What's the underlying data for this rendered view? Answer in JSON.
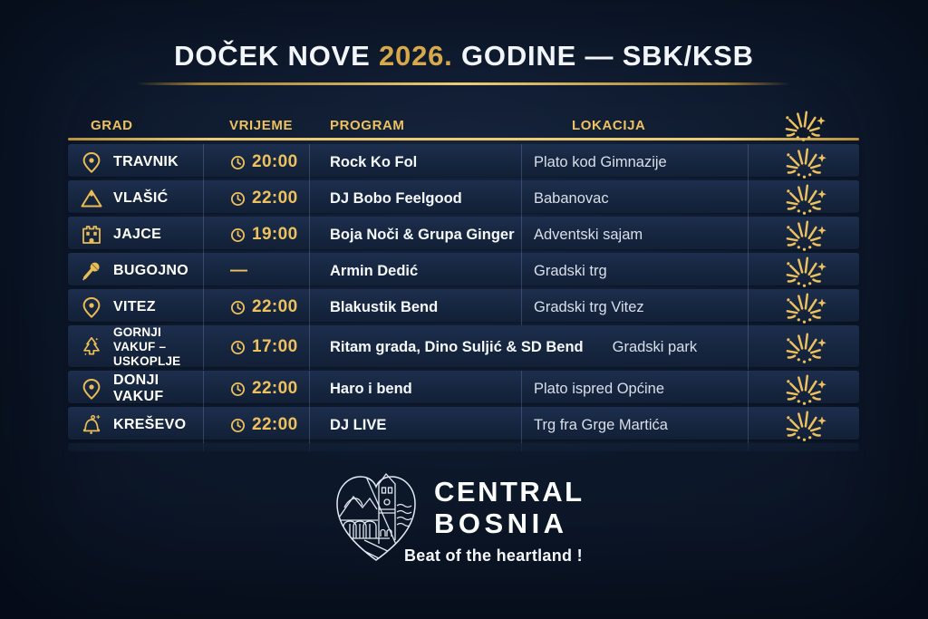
{
  "title": {
    "part1": "DOČEK NOVE ",
    "year": "2026.",
    "part2": " GODINE — SBK/KSB"
  },
  "table": {
    "headers": {
      "grad": "GRAD",
      "vrijeme": "VRIJEME",
      "program": "PROGRAM",
      "lokacija": "LOKACIJA"
    },
    "rows": [
      {
        "city": "TRAVNIK",
        "icon": "pin",
        "time": "20:00",
        "program": "Rock Ko Fol",
        "location": "Plato kod Gimnazije"
      },
      {
        "city": "VLAŠIĆ",
        "icon": "mountain",
        "time": "22:00",
        "program": "DJ Bobo Feelgood",
        "location": "Babanovac"
      },
      {
        "city": "JAJCE",
        "icon": "fortress",
        "time": "19:00",
        "program": "Boja Noči & Grupa Ginger",
        "location": "Adventski sajam"
      },
      {
        "city": "BUGOJNO",
        "icon": "microphone",
        "time": "—",
        "program": "Armin Dedić",
        "location": "Gradski trg"
      },
      {
        "city": "VITEZ",
        "icon": "pin",
        "time": "22:00",
        "program": "Blakustik Bend",
        "location": "Gradski trg Vitez"
      },
      {
        "city": "GORNJI VAKUF –\nUSKOPLJE",
        "icon": "tree",
        "time": "17:00",
        "program": "Ritam grada, Dino Suljić & SD Bend",
        "location": "Gradski park",
        "overflow": true
      },
      {
        "city": "DONJI VAKUF",
        "icon": "pin",
        "time": "22:00",
        "program": "Haro i bend",
        "location": "Plato ispred Općine"
      },
      {
        "city": "KREŠEVO",
        "icon": "bell",
        "time": "22:00",
        "program": "DJ LIVE",
        "location": "Trg fra Grge Martića"
      }
    ]
  },
  "footer": {
    "brand_line1": "CENTRAL",
    "brand_line2": "BOSNIA",
    "tagline": "Beat of the heartland !"
  },
  "colors": {
    "gold": "#EEC15E",
    "gold_deep": "#D8A94A",
    "background": "#0C1627",
    "row": "#17263F"
  }
}
